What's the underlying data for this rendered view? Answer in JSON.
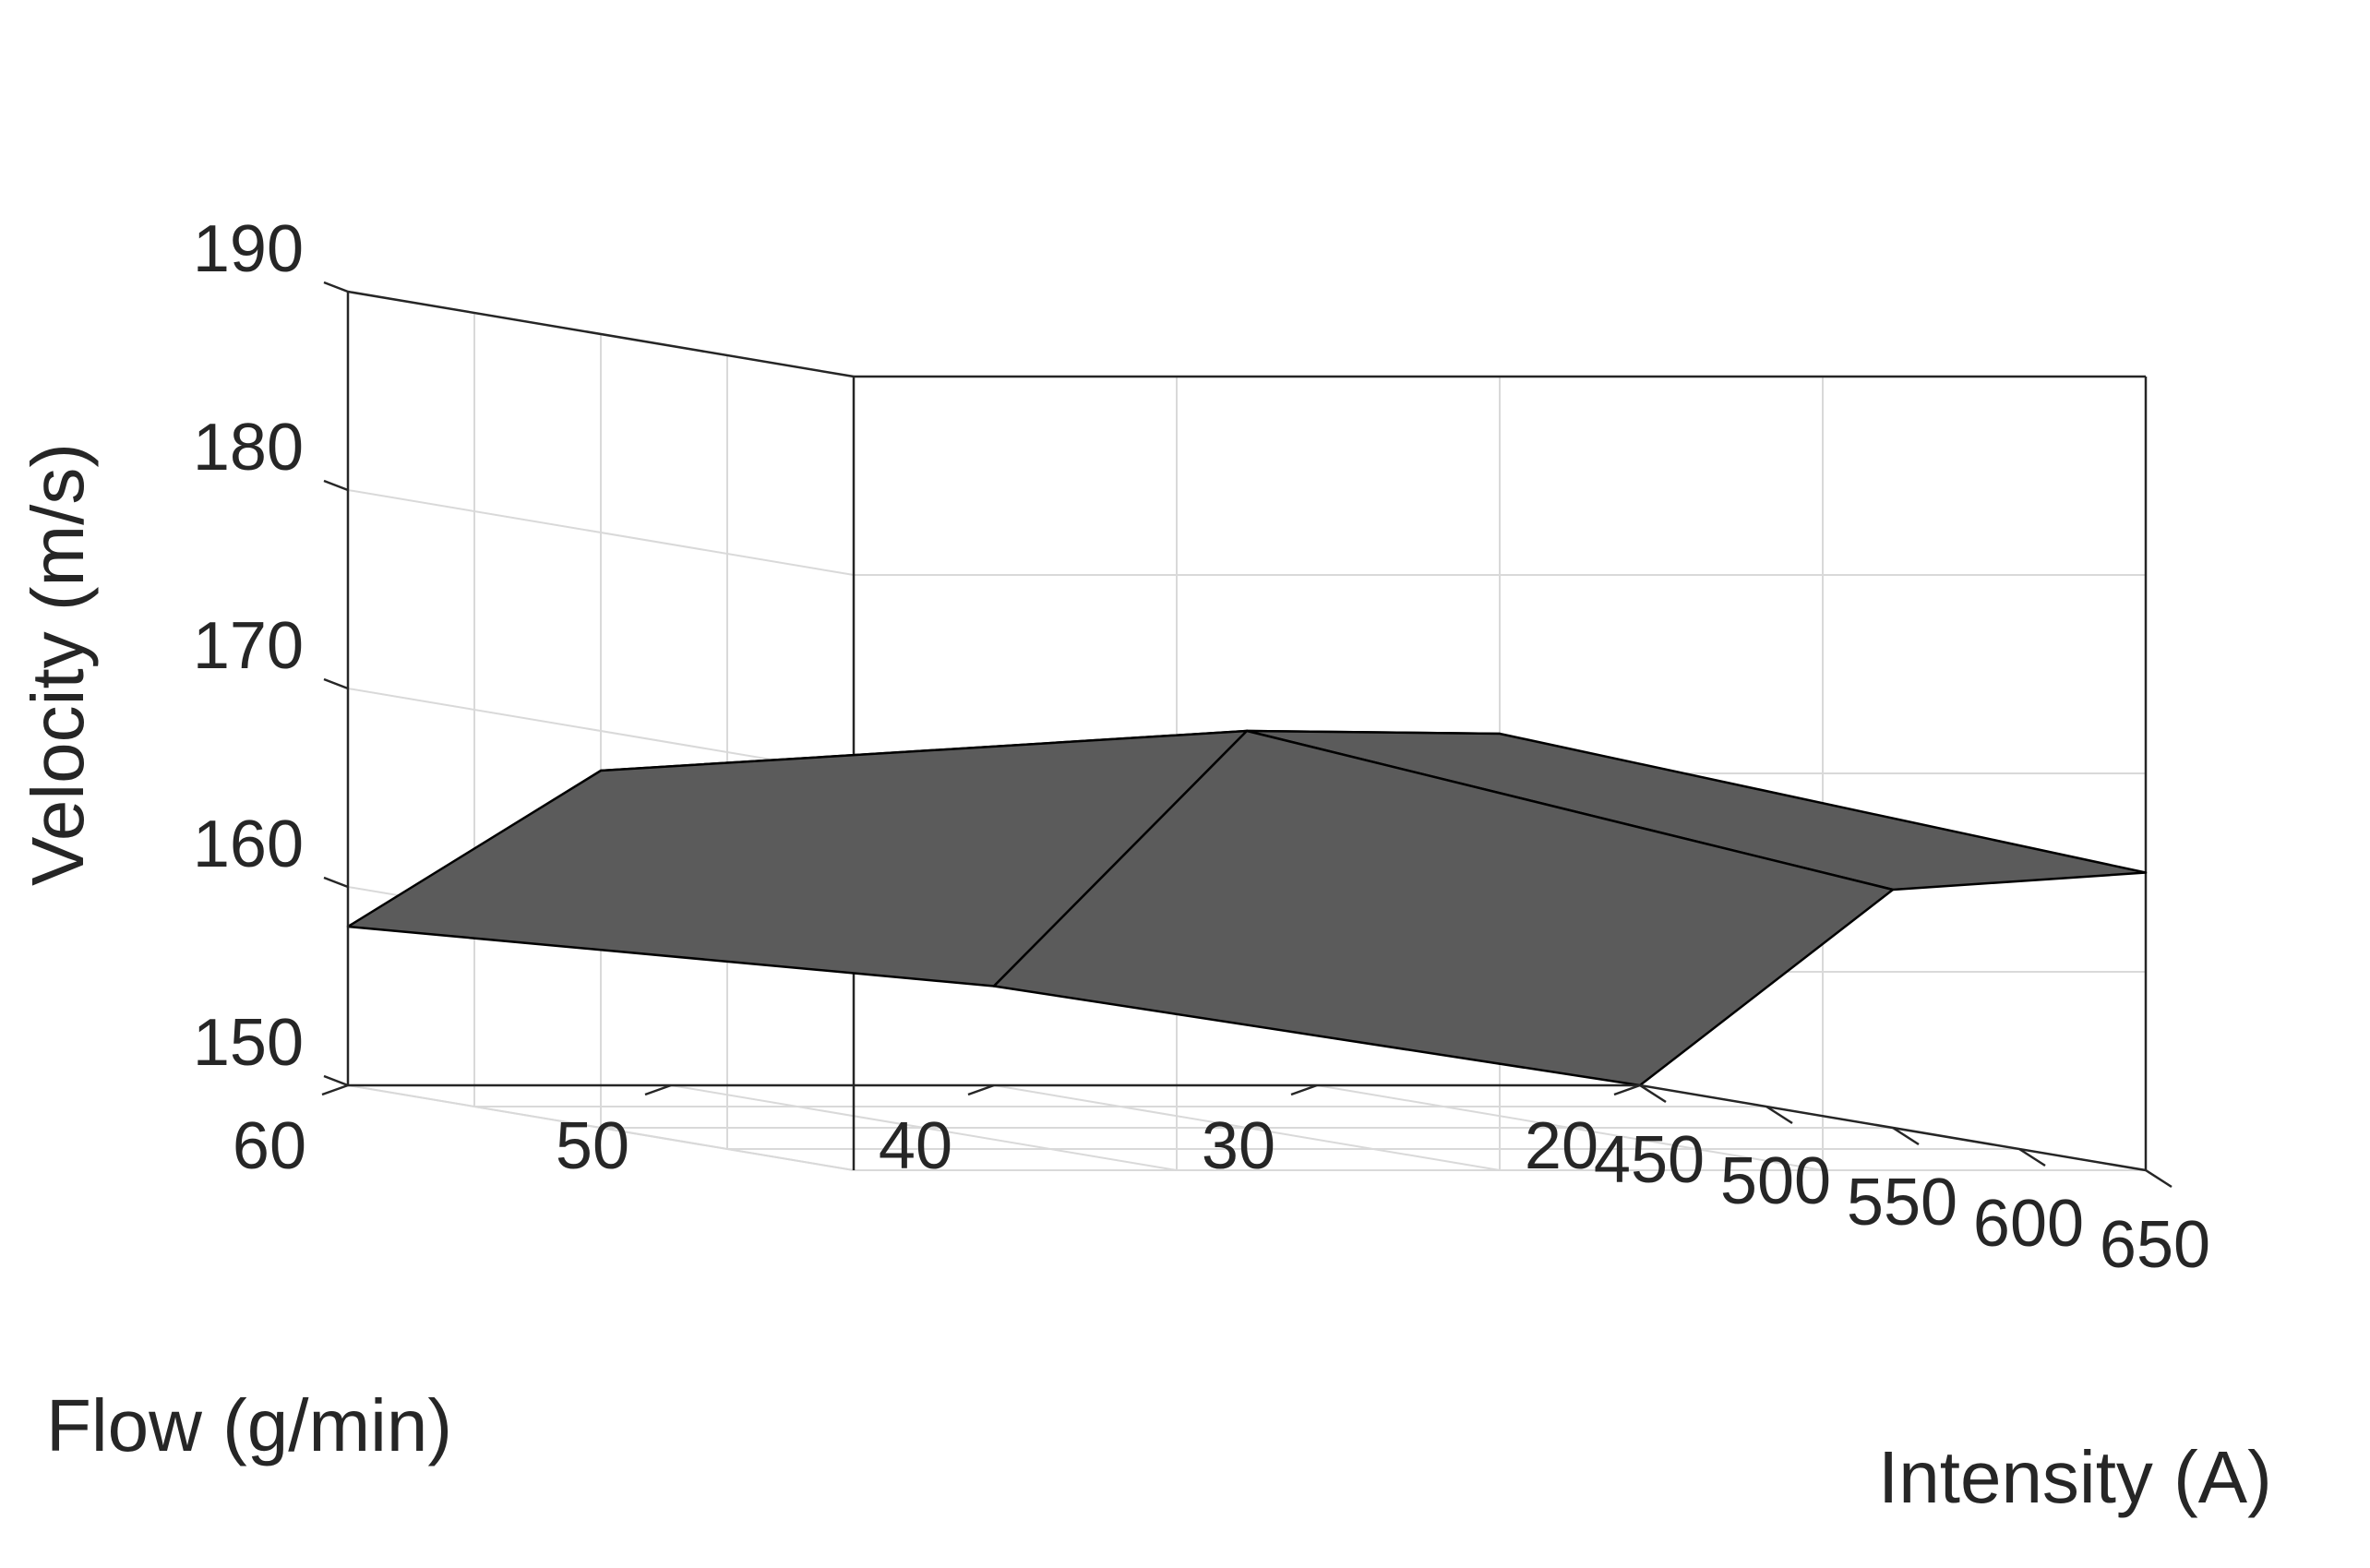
{
  "chart_data": {
    "type": "surface",
    "xlabel": "Intensity (A)",
    "ylabel": "Flow (g/min)",
    "zlabel": "Velocity (m/s)",
    "x_ticks": [
      450,
      500,
      550,
      600,
      650
    ],
    "y_ticks": [
      20,
      30,
      40,
      50,
      60
    ],
    "z_ticks": [
      150,
      160,
      170,
      180,
      190
    ],
    "xlim": [
      450,
      650
    ],
    "ylim": [
      20,
      60
    ],
    "zlim": [
      150,
      190
    ],
    "grid": true,
    "surface_color": "#5b5b5b",
    "edge_color": "#000000",
    "x": [
      450,
      550,
      650
    ],
    "y": [
      20,
      40,
      60
    ],
    "z": [
      [
        150,
        162,
        165
      ],
      [
        155,
        170,
        172
      ],
      [
        158,
        168,
        168
      ]
    ]
  }
}
